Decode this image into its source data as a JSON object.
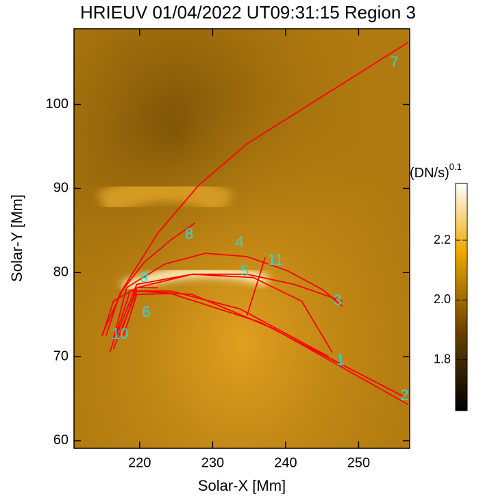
{
  "chart_data": {
    "type": "image",
    "title": "HRIEUV 01/04/2022 UT09:31:15 Region 3",
    "xlabel": "Solar-X [Mm]",
    "ylabel": "Solar-Y [Mm]",
    "xlim": [
      211,
      257
    ],
    "ylim": [
      59.1,
      109
    ],
    "xticks": [
      220,
      230,
      240,
      250
    ],
    "yticks": [
      60,
      70,
      80,
      90,
      100
    ],
    "loop_color": "#ff0000",
    "label_color": "#33d6d6",
    "loops": [
      {
        "x": [
          214.8,
          217.8,
          222.5,
          228.1,
          234.7,
          242.2,
          249.7,
          256.8
        ],
        "y": [
          72.5,
          78.2,
          84.7,
          90.4,
          95.3,
          99.4,
          103.5,
          107.4
        ]
      },
      {
        "x": [
          215.4,
          217.3,
          220.6,
          224.3,
          227.6
        ],
        "y": [
          72.5,
          77.5,
          81.2,
          83.9,
          85.9
        ]
      },
      {
        "x": [
          216.4,
          218.2,
          223.4,
          229.0,
          234.7,
          240.3,
          245.0,
          247.8
        ],
        "y": [
          72.1,
          78.2,
          81.0,
          82.3,
          81.9,
          80.2,
          78.0,
          76.0
        ]
      },
      {
        "x": [
          216.8,
          219.6,
          227.2,
          234.7,
          241.2,
          247.8
        ],
        "y": [
          72.5,
          78.6,
          79.8,
          79.8,
          78.6,
          76.6
        ]
      },
      {
        "x": [
          217.3,
          219.6,
          227.2,
          235.6,
          242.2,
          246.4
        ],
        "y": [
          72.5,
          78.2,
          79.8,
          79.4,
          76.6,
          70.5
        ]
      },
      {
        "x": [
          215.9,
          218.7,
          224.3,
          233.7,
          245.9
        ],
        "y": [
          70.5,
          77.8,
          77.8,
          75.7,
          70.0
        ]
      },
      {
        "x": [
          216.4,
          219.6,
          227.2,
          238.4,
          256.8
        ],
        "y": [
          70.9,
          77.8,
          77.4,
          73.3,
          64.3
        ]
      },
      {
        "x": [
          217.8,
          219.6,
          224.3,
          236.5,
          256.3
        ],
        "y": [
          72.5,
          77.4,
          77.5,
          74.1,
          65.2
        ]
      },
      {
        "x": [
          214.9,
          216.4,
          219.6,
          222.5
        ],
        "y": [
          72.5,
          76.6,
          78.2,
          78.2
        ]
      },
      {
        "x": [
          234.7,
          237.2
        ],
        "y": [
          74.9,
          81.8
        ]
      }
    ],
    "annotations": [
      {
        "text": "7",
        "x": 254.9,
        "y": 104.9
      },
      {
        "text": "8",
        "x": 226.8,
        "y": 84.5
      },
      {
        "text": "4",
        "x": 233.7,
        "y": 83.5
      },
      {
        "text": "11",
        "x": 238.6,
        "y": 81.4
      },
      {
        "text": "5",
        "x": 234.4,
        "y": 80.1
      },
      {
        "text": "9",
        "x": 220.6,
        "y": 79.3
      },
      {
        "text": "3",
        "x": 247.1,
        "y": 76.6
      },
      {
        "text": "6",
        "x": 220.9,
        "y": 75.2
      },
      {
        "text": "10",
        "x": 217.3,
        "y": 72.6
      },
      {
        "text": "1",
        "x": 247.5,
        "y": 69.5
      },
      {
        "text": "2",
        "x": 256.3,
        "y": 65.3
      }
    ],
    "colorbar": {
      "label": "(DN/s)",
      "label_exponent": "0.1",
      "clim": [
        1.63,
        2.39
      ],
      "ticks": [
        1.8,
        {
          "value": 2,
          "label": "2.0"
        },
        2.2
      ]
    }
  }
}
